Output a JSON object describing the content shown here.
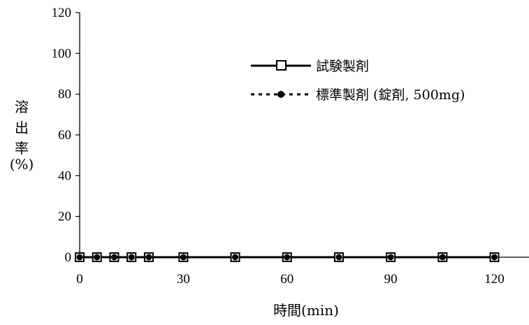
{
  "chart_data": {
    "type": "line",
    "xlabel": "時間(min)",
    "ylabel": [
      "溶",
      "出",
      "率",
      "(%)"
    ],
    "xlim": [
      0,
      130
    ],
    "ylim": [
      0,
      120
    ],
    "x_ticks": [
      0,
      30,
      60,
      90,
      120
    ],
    "y_ticks": [
      0,
      20,
      40,
      60,
      80,
      100,
      120
    ],
    "x": [
      0,
      5,
      10,
      15,
      20,
      30,
      45,
      60,
      75,
      90,
      105,
      120
    ],
    "series": [
      {
        "name": "試験製剤",
        "marker": "open-square",
        "line": "solid",
        "values": [
          0,
          0,
          0,
          0,
          0,
          0,
          0,
          0,
          0,
          0,
          0,
          0
        ]
      },
      {
        "name": "標準製剤 (錠剤, 500mg)",
        "marker": "filled-circle",
        "line": "dotted",
        "values": [
          0,
          0,
          0,
          0,
          0,
          0,
          0,
          0,
          0,
          0,
          0,
          0
        ]
      }
    ],
    "legend_position": "upper-center",
    "grid": false,
    "colors": {
      "line": "#000000",
      "background": "#ffffff"
    }
  }
}
